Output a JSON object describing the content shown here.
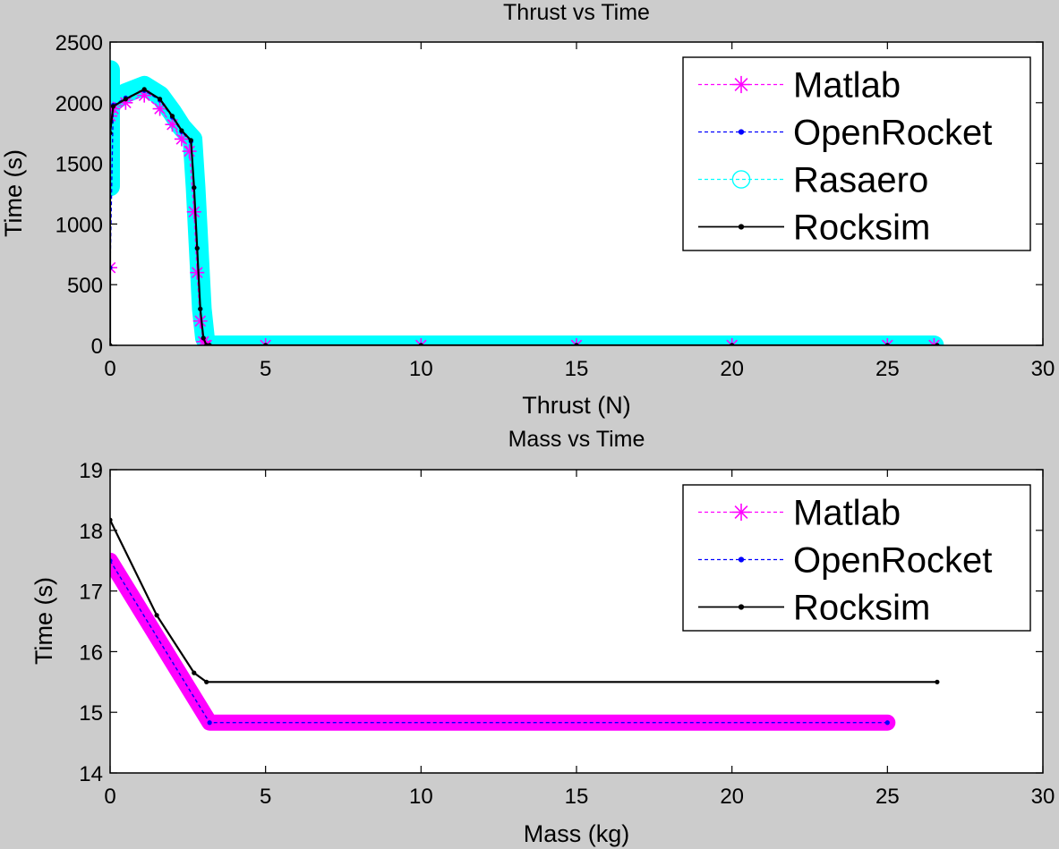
{
  "chart_data": [
    {
      "type": "line",
      "title": "Thrust vs Time",
      "xlabel": "Thrust (N)",
      "ylabel": "Time (s)",
      "xlim": [
        0,
        30
      ],
      "ylim": [
        0,
        2500
      ],
      "xticks": [
        "0",
        "5",
        "10",
        "15",
        "20",
        "25",
        "30"
      ],
      "yticks": [
        "0",
        "500",
        "1000",
        "1500",
        "2000",
        "2500"
      ],
      "grid": false,
      "legend_position": "top-right",
      "legend": [
        "Matlab",
        "OpenRocket",
        "Rasaero",
        "Rocksim"
      ],
      "series": [
        {
          "name": "Matlab",
          "color": "#ff00ff",
          "marker": "asterisk",
          "style": "dashed",
          "x": [
            0,
            0,
            0,
            0.1,
            0.5,
            1.1,
            1.6,
            2.0,
            2.3,
            2.55,
            2.7,
            2.8,
            2.9,
            3.0,
            3.05,
            3.1,
            5,
            10,
            15,
            20,
            25,
            26.5
          ],
          "y": [
            640,
            1890,
            1960,
            1950,
            2000,
            2060,
            1950,
            1820,
            1700,
            1600,
            1100,
            600,
            200,
            30,
            0,
            0,
            0,
            0,
            0,
            0,
            0,
            0
          ]
        },
        {
          "name": "OpenRocket",
          "color": "#0000ff",
          "marker": "dot",
          "style": "dashed",
          "x": [
            0,
            0.1,
            0.5,
            1.1,
            1.6,
            2.0,
            2.3,
            2.6,
            2.7,
            2.8,
            2.9,
            3.0,
            3.1,
            3.2,
            5,
            10,
            15,
            20,
            25,
            26.6
          ],
          "y": [
            640,
            1980,
            2040,
            2100,
            2020,
            1880,
            1760,
            1680,
            1300,
            800,
            300,
            60,
            0,
            0,
            0,
            0,
            0,
            0,
            0,
            0
          ]
        },
        {
          "name": "Rasaero",
          "color": "#00ffff",
          "marker": "circle",
          "style": "dashed",
          "x": [
            0,
            0,
            0,
            0.1,
            0.5,
            1.1,
            1.6,
            2.0,
            2.3,
            2.65,
            2.75,
            2.85,
            2.95,
            3.05,
            3.15,
            3.3,
            5,
            10,
            15,
            20,
            25,
            26.5
          ],
          "y": [
            1310,
            2270,
            2000,
            2010,
            2080,
            2140,
            2060,
            1920,
            1800,
            1700,
            1300,
            800,
            300,
            60,
            10,
            0,
            0,
            0,
            0,
            0,
            0,
            0
          ]
        },
        {
          "name": "Rocksim",
          "color": "#000000",
          "marker": "dot",
          "style": "solid",
          "x": [
            0,
            0,
            0.1,
            0.5,
            1.1,
            1.6,
            2.0,
            2.3,
            2.6,
            2.7,
            2.8,
            2.9,
            3.0,
            3.1,
            3.2,
            5,
            10,
            15,
            20,
            25,
            26.6
          ],
          "y": [
            0,
            1750,
            1970,
            2030,
            2110,
            2030,
            1890,
            1770,
            1690,
            1300,
            800,
            300,
            60,
            0,
            0,
            0,
            0,
            0,
            0,
            0,
            0
          ]
        }
      ]
    },
    {
      "type": "line",
      "title": "Mass vs Time",
      "xlabel": "Mass (kg)",
      "ylabel": "Time (s)",
      "xlim": [
        0,
        30
      ],
      "ylim": [
        14,
        19
      ],
      "xticks": [
        "0",
        "5",
        "10",
        "15",
        "20",
        "25",
        "30"
      ],
      "yticks": [
        "14",
        "15",
        "16",
        "17",
        "18",
        "19"
      ],
      "grid": false,
      "legend_position": "top-right",
      "legend": [
        "Matlab",
        "OpenRocket",
        "Rocksim"
      ],
      "series": [
        {
          "name": "Matlab",
          "color": "#ff00ff",
          "marker": "asterisk",
          "style": "dashed",
          "x": [
            0,
            3.2,
            25
          ],
          "y": [
            17.5,
            14.83,
            14.83
          ]
        },
        {
          "name": "OpenRocket",
          "color": "#0000ff",
          "marker": "dot",
          "style": "dashed",
          "x": [
            0,
            3.2,
            25
          ],
          "y": [
            17.5,
            14.83,
            14.83
          ]
        },
        {
          "name": "Rocksim",
          "color": "#000000",
          "marker": "dot",
          "style": "solid",
          "x": [
            0,
            1.5,
            2.7,
            3.1,
            26.6
          ],
          "y": [
            18.17,
            16.6,
            15.65,
            15.5,
            15.5
          ]
        }
      ]
    }
  ]
}
